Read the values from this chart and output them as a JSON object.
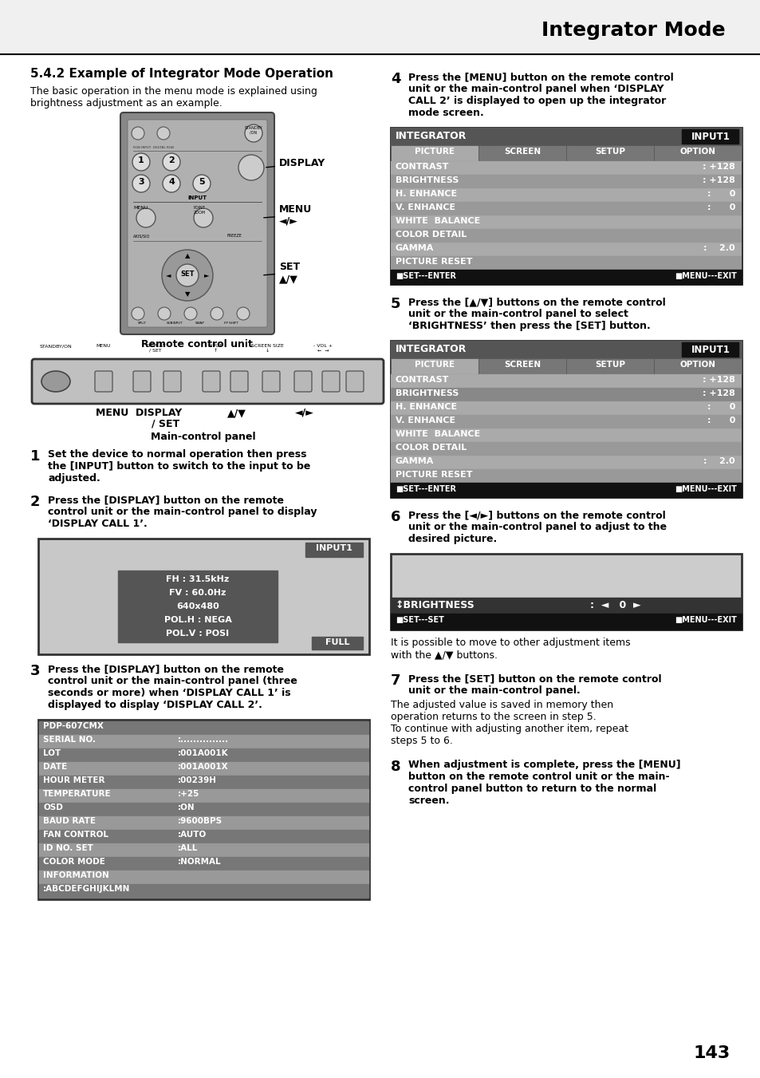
{
  "page_title": "Integrator Mode",
  "section_title": "5.4.2 Example of Integrator Mode Operation",
  "section_subtitle": "The basic operation in the menu mode is explained using\nbrightness adjustment as an example.",
  "bg_color": "#ffffff",
  "step1_bold": "Set the device to normal operation then press\nthe [INPUT] button to switch to the input to be\nadjusted.",
  "step2_bold": "Press the [DISPLAY] button on the remote\ncontrol unit or the main-control panel to display\n‘DISPLAY CALL 1’.",
  "step3_bold": "Press the [DISPLAY] button on the remote\ncontrol unit or the main-control panel (three\nseconds or more) when ‘DISPLAY CALL 1’ is\ndisplayed to display ‘DISPLAY CALL 2’.",
  "step4_bold": "Press the [MENU] button on the remote control\nunit or the main-control panel when ‘DISPLAY\nCALL 2’ is displayed to open up the integrator\nmode screen.",
  "step5_bold": "Press the [▲/▼] buttons on the remote control\nunit or the main-control panel to select\n‘BRIGHTNESS’ then press the [SET] button.",
  "step6_bold": "Press the [◄/►] buttons on the remote control\nunit or the main-control panel to adjust to the\ndesired picture.",
  "step6_sub": "It is possible to move to other adjustment items\nwith the ▲/▼ buttons.",
  "step7_bold": "Press the [SET] button on the remote control\nunit or the main-control panel.",
  "step7_sub": "The adjusted value is saved in memory then\noperation returns to the screen in step 5.\nTo continue with adjusting another item, repeat\nsteps 5 to 6.",
  "step8_bold": "When adjustment is complete, press the [MENU]\nbutton on the remote control unit or the main-\ncontrol panel button to return to the normal\nscreen.",
  "page_number": "143",
  "integrator_screen_rows": [
    [
      "CONTRAST",
      ": +128"
    ],
    [
      "BRIGHTNESS",
      ": +128"
    ],
    [
      "H. ENHANCE",
      ":      0"
    ],
    [
      "V. ENHANCE",
      ":      0"
    ],
    [
      "WHITE  BALANCE",
      ""
    ],
    [
      "COLOR DETAIL",
      ""
    ],
    [
      "GAMMA",
      ":    2.0"
    ],
    [
      "PICTURE RESET",
      ""
    ]
  ],
  "display_call1_lines": [
    "FH : 31.5kHz",
    "FV : 60.0Hz",
    "640x480",
    "POL.H : NEGA",
    "POL.V : POSI"
  ],
  "display_call2_rows": [
    [
      "PDP-607CMX",
      ""
    ],
    [
      "SERIAL NO.",
      ":..............."
    ],
    [
      "LOT",
      ":001A001K"
    ],
    [
      "DATE",
      ":001A001X"
    ],
    [
      "HOUR METER",
      ":00239H"
    ],
    [
      "TEMPERATURE",
      ":+25"
    ],
    [
      "OSD",
      ":ON"
    ],
    [
      "BAUD RATE",
      ":9600BPS"
    ],
    [
      "FAN CONTROL",
      ":AUTO"
    ],
    [
      "ID NO. SET",
      ":ALL"
    ],
    [
      "COLOR MODE",
      ":NORMAL"
    ],
    [
      "INFORMATION",
      ""
    ],
    [
      ":ABCDEFGHIJKLMN",
      ""
    ]
  ],
  "brightness_label": "↕BRIGHTNESS",
  "brightness_value": "0",
  "br_footer_left": "■SET---SET",
  "br_footer_right": "■MENU---EXIT",
  "scr_footer_left": "■SET---ENTER",
  "scr_footer_right": "■MENU---EXIT"
}
